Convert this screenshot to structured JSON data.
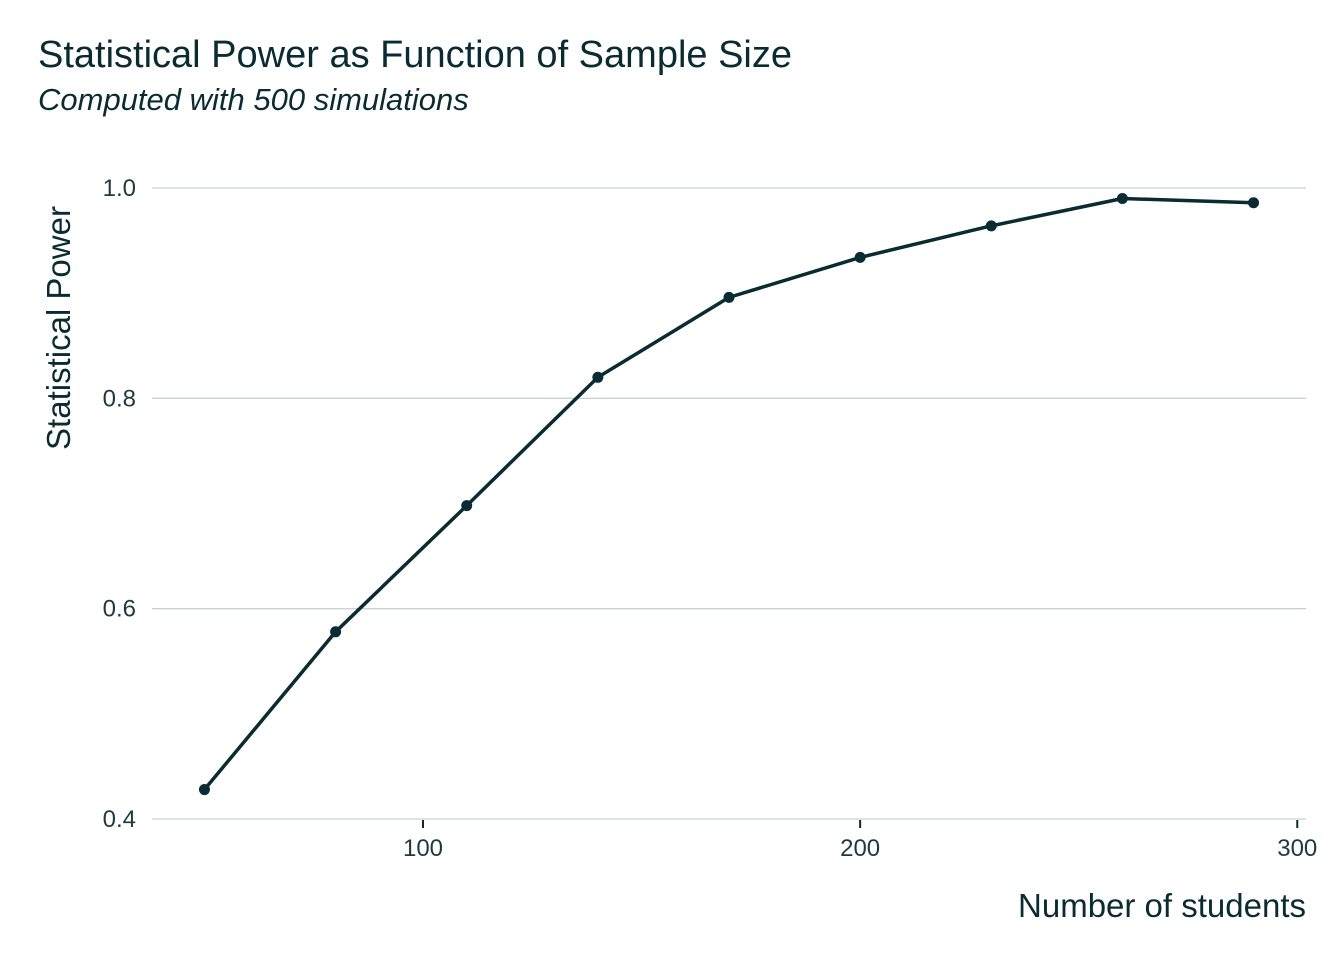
{
  "chart_data": {
    "type": "line",
    "title": "Statistical Power as Function of Sample Size",
    "subtitle": "Computed with 500 simulations",
    "xlabel": "Number of students",
    "ylabel": "Statistical Power",
    "x": [
      50,
      80,
      110,
      140,
      170,
      200,
      230,
      260,
      290
    ],
    "series": [
      {
        "values": [
          0.428,
          0.578,
          0.698,
          0.82,
          0.896,
          0.934,
          0.964,
          0.99,
          0.986
        ]
      }
    ],
    "xlim": [
      38,
      302
    ],
    "ylim": [
      0.4,
      1.0
    ],
    "xticks": [
      100,
      200,
      300
    ],
    "yticks": [
      0.4,
      0.6,
      0.8,
      1.0
    ],
    "xtick_labels": [
      "100",
      "200",
      "300"
    ],
    "ytick_labels": [
      "0.4",
      "0.6",
      "0.8",
      "1.0"
    ],
    "grid": "horizontal",
    "line_color": "#0b2b33",
    "grid_color": "#c9d3d5"
  }
}
